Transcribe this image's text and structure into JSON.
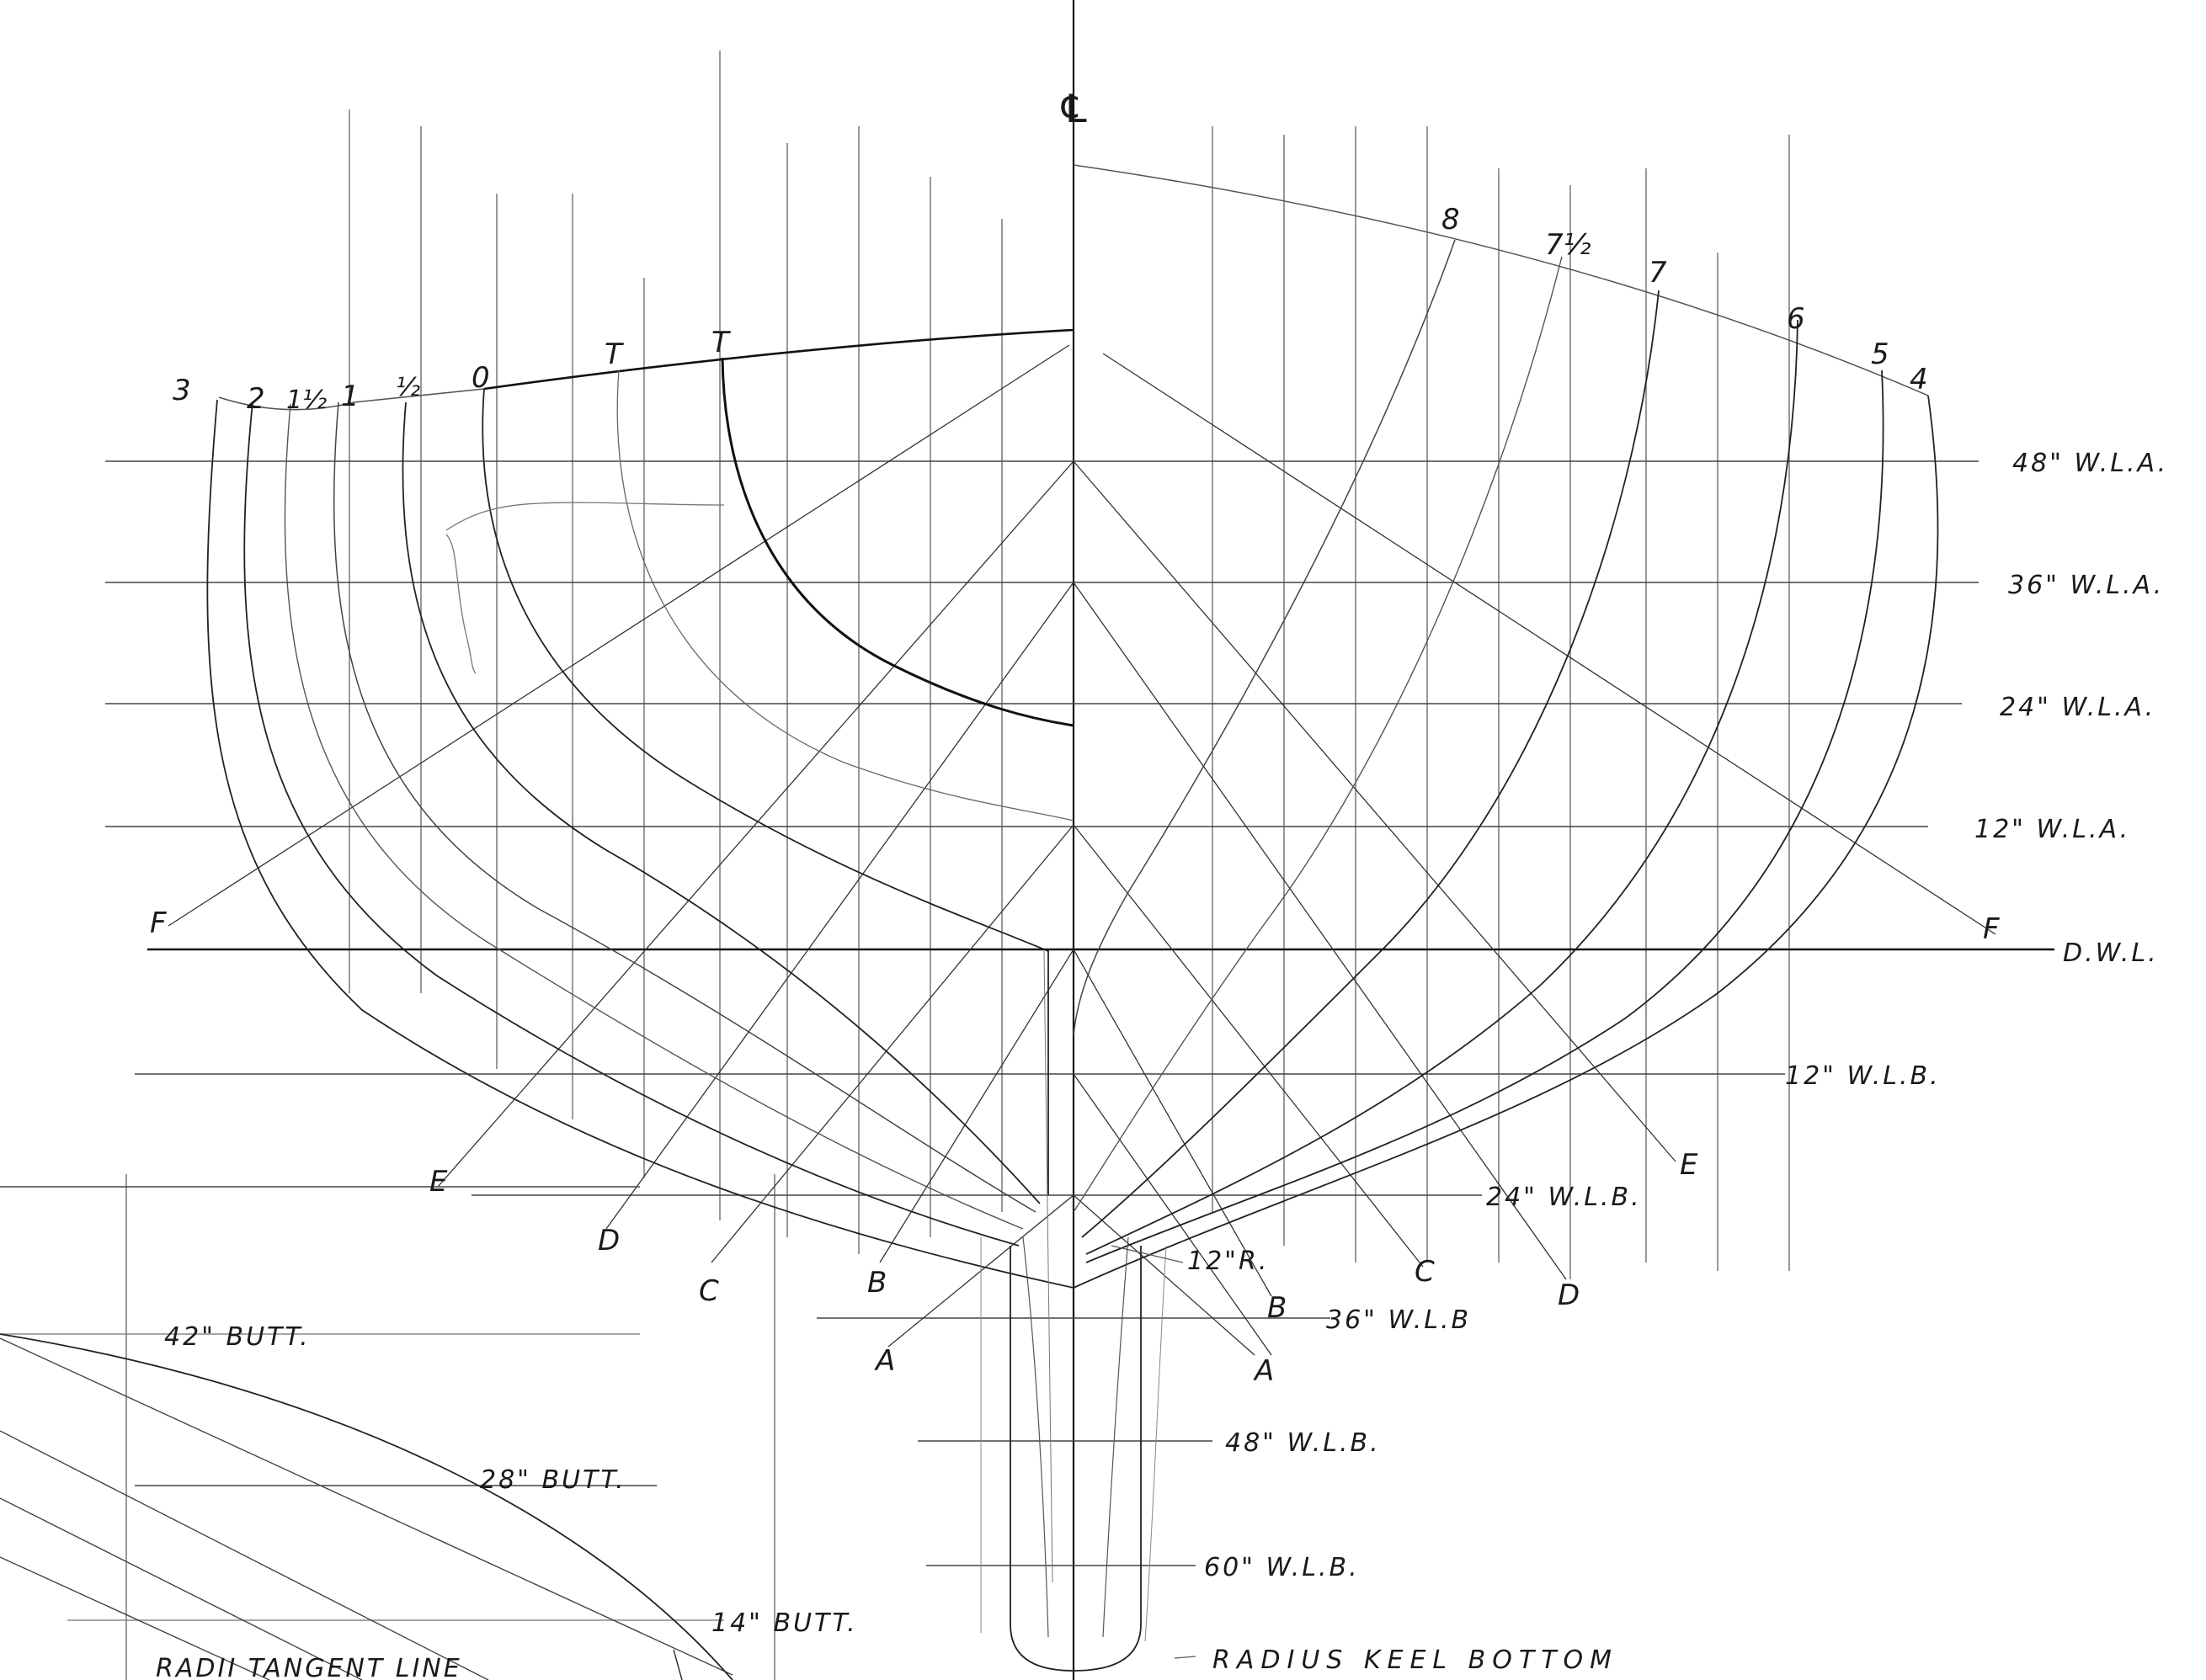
{
  "drawing": {
    "centerline_symbol": "℄",
    "waterlines_above": [
      "48\" W.L.A.",
      "36\" W.L.A.",
      "24\" W.L.A.",
      "12\" W.L.A."
    ],
    "dwl": "D.W.L.",
    "waterlines_below": [
      "12\" W.L.B.",
      "24\" W.L.B.",
      "36\" W.L.B",
      "48\" W.L.B.",
      "60\" W.L.B."
    ],
    "stations_aft": [
      "3",
      "2",
      "1½",
      "1",
      "½",
      "0",
      "T",
      "T"
    ],
    "stations_fwd": [
      "8",
      "7½",
      "7",
      "6",
      "5",
      "4"
    ],
    "diagonals_left": [
      "F",
      "E",
      "D",
      "C",
      "B",
      "A"
    ],
    "diagonals_right": [
      "F",
      "E",
      "D",
      "C",
      "B",
      "A"
    ],
    "radius_note": "12\"R.",
    "keel_note": "RADIUS KEEL BOTTOM",
    "buttocks": [
      "42\" BUTT.",
      "28\" BUTT.",
      "14\" BUTT."
    ],
    "tangent_note": "RADII TANGENT LINE"
  },
  "colors": {
    "ink": "#1a1a1a",
    "paper": "#ffffff"
  }
}
